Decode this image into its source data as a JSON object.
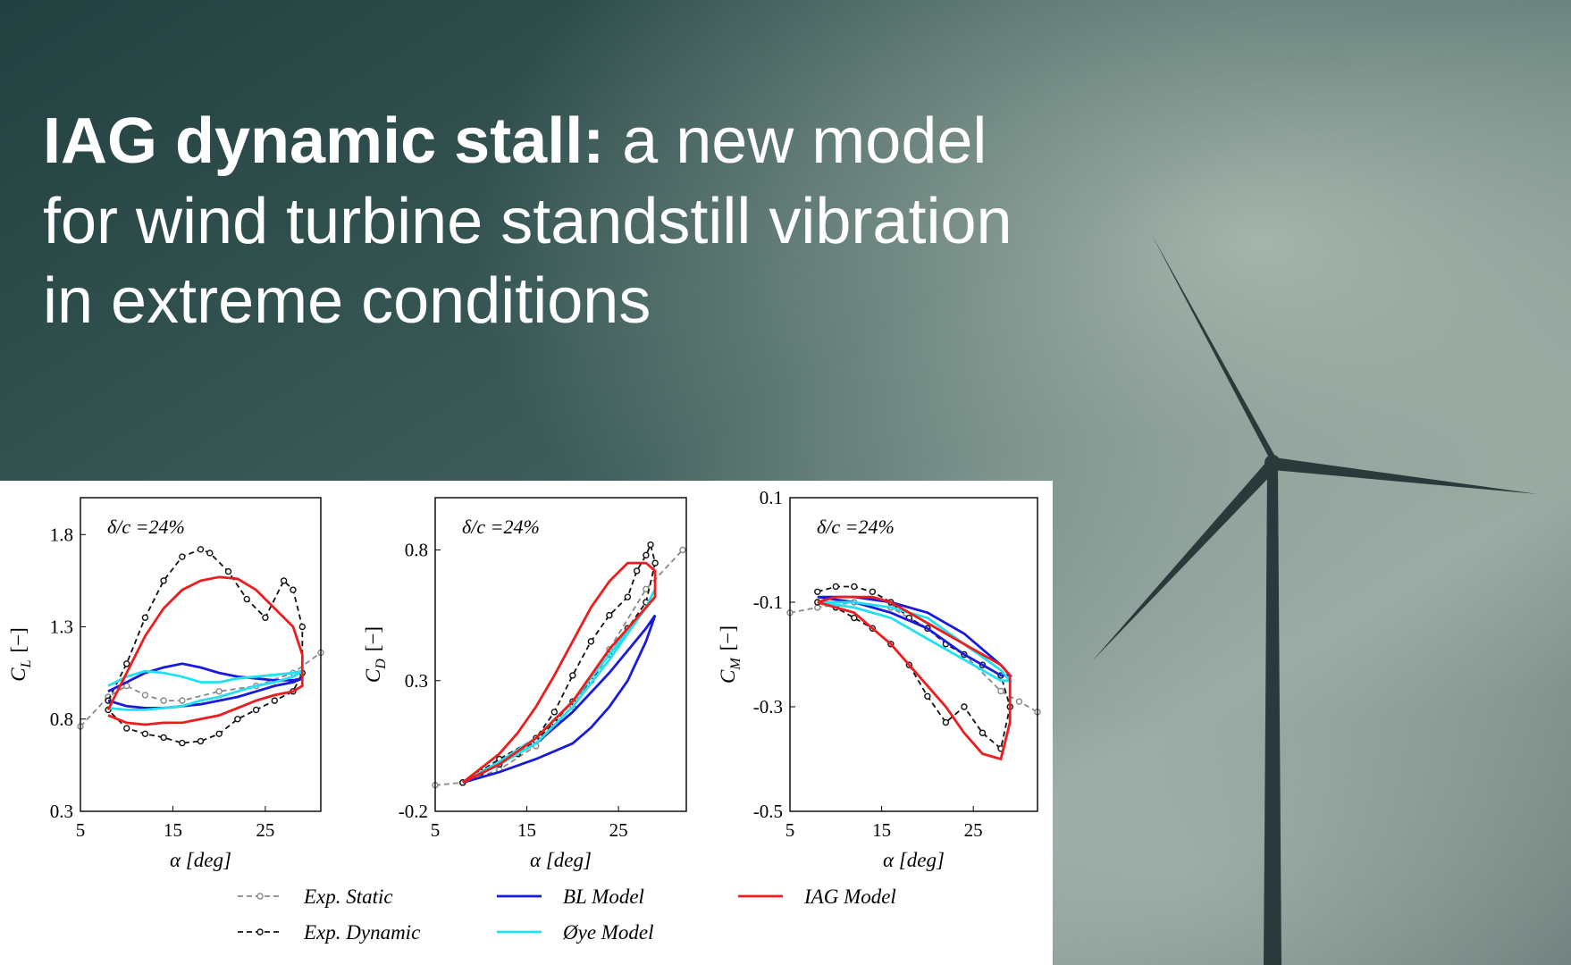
{
  "headline": {
    "bold": "IAG dynamic stall:",
    "lines": [
      "a new model",
      "for wind turbine standstill vibration",
      "in extreme conditions"
    ]
  },
  "chart_data": [
    {
      "type": "line",
      "annotation": "δ/c =24%",
      "xlabel": "α [deg]",
      "ylabel": {
        "symbol": "C",
        "sub": "L",
        "unit": "[−]"
      },
      "xlim": [
        5,
        31
      ],
      "ylim": [
        0.3,
        2.0
      ],
      "xticks": [
        5,
        15,
        25
      ],
      "yticks": [
        0.3,
        0.8,
        1.3,
        1.8
      ],
      "series": [
        {
          "name": "Exp. Static",
          "color": "#888888",
          "dash": true,
          "markers": true,
          "x": [
            5,
            8,
            10,
            12,
            14,
            16,
            20,
            24,
            28,
            31
          ],
          "values": [
            0.76,
            0.92,
            0.98,
            0.93,
            0.9,
            0.9,
            0.95,
            0.98,
            1.05,
            1.16
          ]
        },
        {
          "name": "Exp. Dynamic",
          "color": "#111111",
          "dash": true,
          "markers": true,
          "x": [
            8,
            10,
            12,
            14,
            16,
            18,
            19,
            21,
            23,
            25,
            27,
            28,
            29,
            29,
            28,
            26,
            24,
            22,
            20,
            18,
            16,
            14,
            12,
            10,
            8
          ],
          "values": [
            0.9,
            1.1,
            1.35,
            1.55,
            1.68,
            1.72,
            1.7,
            1.6,
            1.45,
            1.35,
            1.55,
            1.5,
            1.3,
            1.05,
            0.95,
            0.9,
            0.85,
            0.8,
            0.72,
            0.68,
            0.67,
            0.7,
            0.72,
            0.75,
            0.85
          ]
        },
        {
          "name": "BL Model",
          "color": "#1a1adc",
          "x": [
            8,
            10,
            12,
            14,
            16,
            18,
            20,
            22,
            24,
            26,
            28,
            29,
            28,
            26,
            24,
            22,
            20,
            18,
            16,
            14,
            12,
            10,
            8
          ],
          "values": [
            0.95,
            1.0,
            1.05,
            1.08,
            1.1,
            1.08,
            1.05,
            1.03,
            1.02,
            1.01,
            1.01,
            1.02,
            1.0,
            0.98,
            0.95,
            0.92,
            0.9,
            0.88,
            0.87,
            0.86,
            0.86,
            0.87,
            0.9
          ]
        },
        {
          "name": "Øye Model",
          "color": "#22e0f0",
          "x": [
            8,
            10,
            12,
            14,
            16,
            18,
            20,
            22,
            24,
            26,
            28,
            29,
            28,
            26,
            24,
            22,
            20,
            18,
            16,
            14,
            12,
            10,
            8
          ],
          "values": [
            0.98,
            1.03,
            1.06,
            1.05,
            1.03,
            1.0,
            1.0,
            1.02,
            1.03,
            1.04,
            1.05,
            1.06,
            1.03,
            1.0,
            0.98,
            0.95,
            0.92,
            0.9,
            0.87,
            0.86,
            0.85,
            0.85,
            0.86
          ]
        },
        {
          "name": "IAG Model",
          "color": "#ee1c1c",
          "x": [
            8,
            10,
            12,
            14,
            16,
            18,
            20,
            22,
            24,
            26,
            28,
            29,
            29,
            28,
            26,
            24,
            22,
            20,
            18,
            16,
            14,
            12,
            10,
            8
          ],
          "values": [
            0.85,
            1.05,
            1.25,
            1.4,
            1.5,
            1.55,
            1.57,
            1.56,
            1.5,
            1.4,
            1.3,
            1.15,
            0.98,
            0.95,
            0.93,
            0.9,
            0.86,
            0.82,
            0.8,
            0.78,
            0.78,
            0.77,
            0.78,
            0.82
          ]
        }
      ]
    },
    {
      "type": "line",
      "annotation": "δ/c =24%",
      "xlabel": "α [deg]",
      "ylabel": {
        "symbol": "C",
        "sub": "D",
        "unit": "[−]"
      },
      "xlim": [
        5,
        32.4
      ],
      "ylim": [
        -0.2,
        1.0
      ],
      "xticks": [
        5,
        15,
        25
      ],
      "yticks": [
        -0.2,
        0.3,
        0.8
      ],
      "series": [
        {
          "color": "#888888",
          "dash": true,
          "markers": true,
          "x": [
            5,
            8,
            12,
            16,
            20,
            24,
            28,
            32
          ],
          "values": [
            -0.1,
            -0.09,
            -0.04,
            0.05,
            0.2,
            0.42,
            0.65,
            0.8
          ]
        },
        {
          "color": "#111111",
          "dash": true,
          "markers": true,
          "x": [
            8,
            12,
            16,
            18,
            20,
            22,
            24,
            26,
            27,
            28,
            28.5,
            29,
            28,
            26,
            24,
            22,
            20,
            18,
            16,
            14,
            12,
            10,
            8
          ],
          "values": [
            -0.09,
            0.0,
            0.08,
            0.18,
            0.32,
            0.45,
            0.55,
            0.62,
            0.72,
            0.78,
            0.82,
            0.75,
            0.6,
            0.5,
            0.4,
            0.3,
            0.22,
            0.14,
            0.07,
            0.02,
            -0.02,
            -0.05,
            -0.09
          ]
        },
        {
          "color": "#1a1adc",
          "x": [
            8,
            12,
            16,
            20,
            24,
            28,
            29,
            28,
            26,
            24,
            22,
            20,
            16,
            12,
            8
          ],
          "values": [
            -0.09,
            -0.02,
            0.06,
            0.18,
            0.33,
            0.5,
            0.55,
            0.45,
            0.3,
            0.2,
            0.12,
            0.06,
            0.0,
            -0.05,
            -0.09
          ]
        },
        {
          "color": "#22e0f0",
          "x": [
            8,
            12,
            16,
            20,
            24,
            28,
            29,
            28,
            24,
            20,
            16,
            12,
            8
          ],
          "values": [
            -0.09,
            -0.01,
            0.08,
            0.22,
            0.4,
            0.58,
            0.65,
            0.58,
            0.38,
            0.2,
            0.06,
            -0.02,
            -0.09
          ]
        },
        {
          "color": "#ee1c1c",
          "x": [
            8,
            12,
            14,
            16,
            18,
            20,
            22,
            24,
            26,
            28,
            29,
            29,
            28,
            26,
            24,
            22,
            20,
            16,
            12,
            8
          ],
          "values": [
            -0.09,
            0.02,
            0.1,
            0.2,
            0.32,
            0.45,
            0.58,
            0.68,
            0.75,
            0.75,
            0.72,
            0.62,
            0.58,
            0.5,
            0.42,
            0.32,
            0.22,
            0.08,
            -0.02,
            -0.09
          ]
        }
      ]
    },
    {
      "type": "line",
      "annotation": "δ/c =24%",
      "xlabel": "α [deg]",
      "ylabel": {
        "symbol": "C",
        "sub": "M",
        "unit": "[−]"
      },
      "xlim": [
        5,
        32
      ],
      "ylim": [
        -0.5,
        0.1
      ],
      "xticks": [
        5,
        15,
        25
      ],
      "yticks": [
        -0.5,
        -0.3,
        -0.1,
        0.1
      ],
      "series": [
        {
          "color": "#888888",
          "dash": true,
          "markers": true,
          "x": [
            5,
            8,
            12,
            16,
            20,
            24,
            28,
            30,
            32
          ],
          "values": [
            -0.12,
            -0.11,
            -0.1,
            -0.11,
            -0.15,
            -0.2,
            -0.27,
            -0.29,
            -0.31
          ]
        },
        {
          "color": "#111111",
          "dash": true,
          "markers": true,
          "x": [
            8,
            10,
            12,
            14,
            16,
            18,
            20,
            22,
            24,
            26,
            28,
            29,
            28,
            26,
            24,
            22,
            20,
            18,
            16,
            14,
            12,
            10,
            8
          ],
          "values": [
            -0.08,
            -0.07,
            -0.07,
            -0.08,
            -0.1,
            -0.13,
            -0.15,
            -0.18,
            -0.2,
            -0.22,
            -0.24,
            -0.3,
            -0.38,
            -0.35,
            -0.3,
            -0.33,
            -0.28,
            -0.22,
            -0.18,
            -0.15,
            -0.13,
            -0.11,
            -0.1
          ]
        },
        {
          "color": "#1a1adc",
          "x": [
            8,
            12,
            16,
            20,
            24,
            28,
            29,
            28,
            24,
            20,
            16,
            12,
            8
          ],
          "values": [
            -0.09,
            -0.09,
            -0.1,
            -0.12,
            -0.16,
            -0.22,
            -0.24,
            -0.24,
            -0.2,
            -0.15,
            -0.12,
            -0.1,
            -0.09
          ]
        },
        {
          "color": "#22e0f0",
          "x": [
            8,
            12,
            16,
            20,
            24,
            28,
            29,
            28,
            24,
            20,
            16,
            12,
            8
          ],
          "values": [
            -0.1,
            -0.1,
            -0.11,
            -0.13,
            -0.18,
            -0.23,
            -0.25,
            -0.25,
            -0.21,
            -0.17,
            -0.13,
            -0.11,
            -0.1
          ]
        },
        {
          "color": "#ee1c1c",
          "x": [
            8,
            10,
            12,
            14,
            16,
            18,
            20,
            22,
            24,
            26,
            27,
            28,
            29,
            29,
            28,
            26,
            24,
            22,
            20,
            18,
            16,
            14,
            12,
            10,
            8
          ],
          "values": [
            -0.1,
            -0.09,
            -0.09,
            -0.09,
            -0.1,
            -0.12,
            -0.14,
            -0.16,
            -0.18,
            -0.2,
            -0.21,
            -0.22,
            -0.24,
            -0.33,
            -0.4,
            -0.39,
            -0.35,
            -0.3,
            -0.26,
            -0.22,
            -0.18,
            -0.15,
            -0.12,
            -0.11,
            -0.1
          ]
        }
      ]
    }
  ]
}
